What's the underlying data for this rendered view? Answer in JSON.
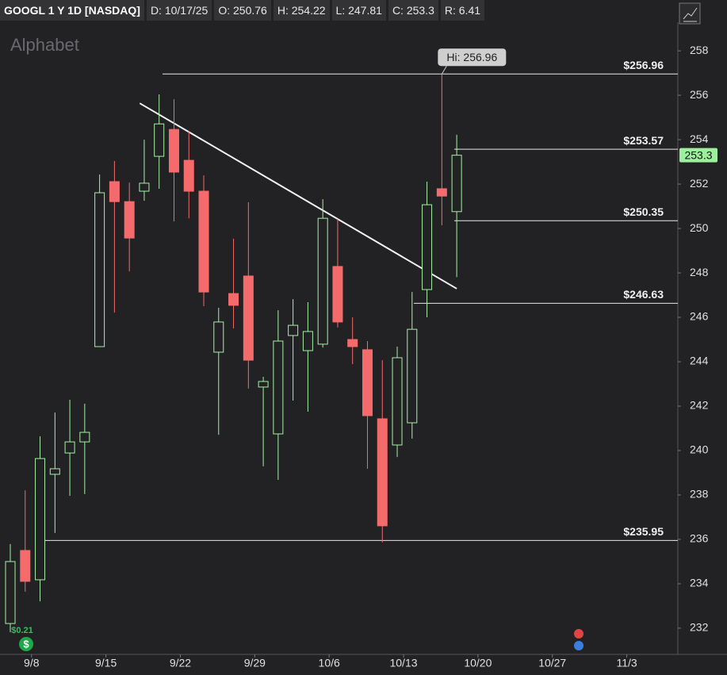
{
  "chart_data": {
    "type": "candlestick",
    "header": [
      "GOOGL 1 Y 1D [NASDAQ]",
      "D: 10/17/25",
      "O: 250.76",
      "H: 254.22",
      "L: 247.81",
      "C: 253.3",
      "R: 6.41"
    ],
    "watermark": "Alphabet",
    "categories": [
      null,
      "9/8",
      null,
      null,
      null,
      null,
      "9/15",
      null,
      null,
      null,
      null,
      "9/22",
      null,
      null,
      null,
      null,
      "9/29",
      null,
      null,
      null,
      null,
      "10/6",
      null,
      null,
      null,
      null,
      "10/13",
      null,
      null,
      null,
      null,
      "10/20",
      null,
      null,
      null,
      null,
      "10/27",
      null,
      null,
      null,
      null,
      "11/3"
    ],
    "open": [
      232.21,
      235.5,
      234.18,
      238.93,
      239.89,
      240.39,
      244.68,
      252.11,
      251.21,
      251.68,
      253.25,
      254.46,
      253.07,
      251.68,
      244.43,
      247.07,
      247.86,
      242.86,
      240.75,
      245.18,
      244.5,
      244.79,
      248.29,
      245.0,
      244.54,
      241.43,
      240.25,
      241.25,
      247.25,
      251.79,
      250.76,
      null,
      null,
      null,
      null,
      null,
      null,
      null,
      null,
      null,
      null,
      null
    ],
    "high": [
      235.79,
      238.21,
      240.64,
      241.71,
      242.29,
      242.11,
      252.43,
      253.04,
      252.07,
      254.0,
      256.04,
      255.82,
      254.39,
      252.39,
      246.43,
      249.54,
      251.18,
      243.32,
      246.32,
      246.82,
      246.68,
      251.32,
      250.43,
      246.0,
      244.93,
      244.07,
      244.68,
      247.14,
      252.11,
      256.96,
      254.22,
      null,
      null,
      null,
      null,
      null,
      null,
      null,
      null,
      null,
      null,
      null
    ],
    "low": [
      231.82,
      233.64,
      233.21,
      236.29,
      237.96,
      238.04,
      244.68,
      246.21,
      248.07,
      251.25,
      251.79,
      250.32,
      250.46,
      246.5,
      240.71,
      245.5,
      242.79,
      239.29,
      238.68,
      242.25,
      241.75,
      244.64,
      245.54,
      243.89,
      239.18,
      235.86,
      239.71,
      240.54,
      246.0,
      250.14,
      247.81,
      null,
      null,
      null,
      null,
      null,
      null,
      null,
      null,
      null,
      null,
      null
    ],
    "close": [
      235.0,
      234.11,
      239.64,
      239.18,
      240.39,
      240.82,
      251.61,
      251.21,
      249.57,
      252.04,
      254.71,
      252.54,
      251.68,
      247.14,
      245.79,
      246.54,
      244.07,
      243.11,
      244.93,
      245.64,
      245.36,
      250.46,
      245.79,
      244.68,
      241.57,
      236.61,
      244.18,
      245.46,
      251.07,
      251.46,
      253.3,
      null,
      null,
      null,
      null,
      null,
      null,
      null,
      null,
      null,
      null,
      null
    ],
    "up_color": "#a6f0a6",
    "down_color": "#f56b6b",
    "ylim": [
      230.82,
      259.29
    ],
    "yticks": [
      232,
      234,
      236,
      238,
      240,
      242,
      244,
      246,
      248,
      250,
      252,
      254,
      256,
      258
    ],
    "levels": [
      {
        "value": 256.96,
        "label": "$256.96"
      },
      {
        "value": 253.57,
        "label": "$253.57"
      },
      {
        "value": 250.35,
        "label": "$250.35"
      },
      {
        "value": 246.63,
        "label": "$246.63"
      },
      {
        "value": 235.95,
        "label": "$235.95"
      }
    ],
    "high_label": "Hi: 256.96",
    "last_price": 253.3,
    "last_price_color": "#9df09d",
    "trendline": {
      "x": [
        8.7,
        30
      ],
      "y": [
        255.64,
        247.29
      ]
    },
    "dividend": "$0.21"
  }
}
